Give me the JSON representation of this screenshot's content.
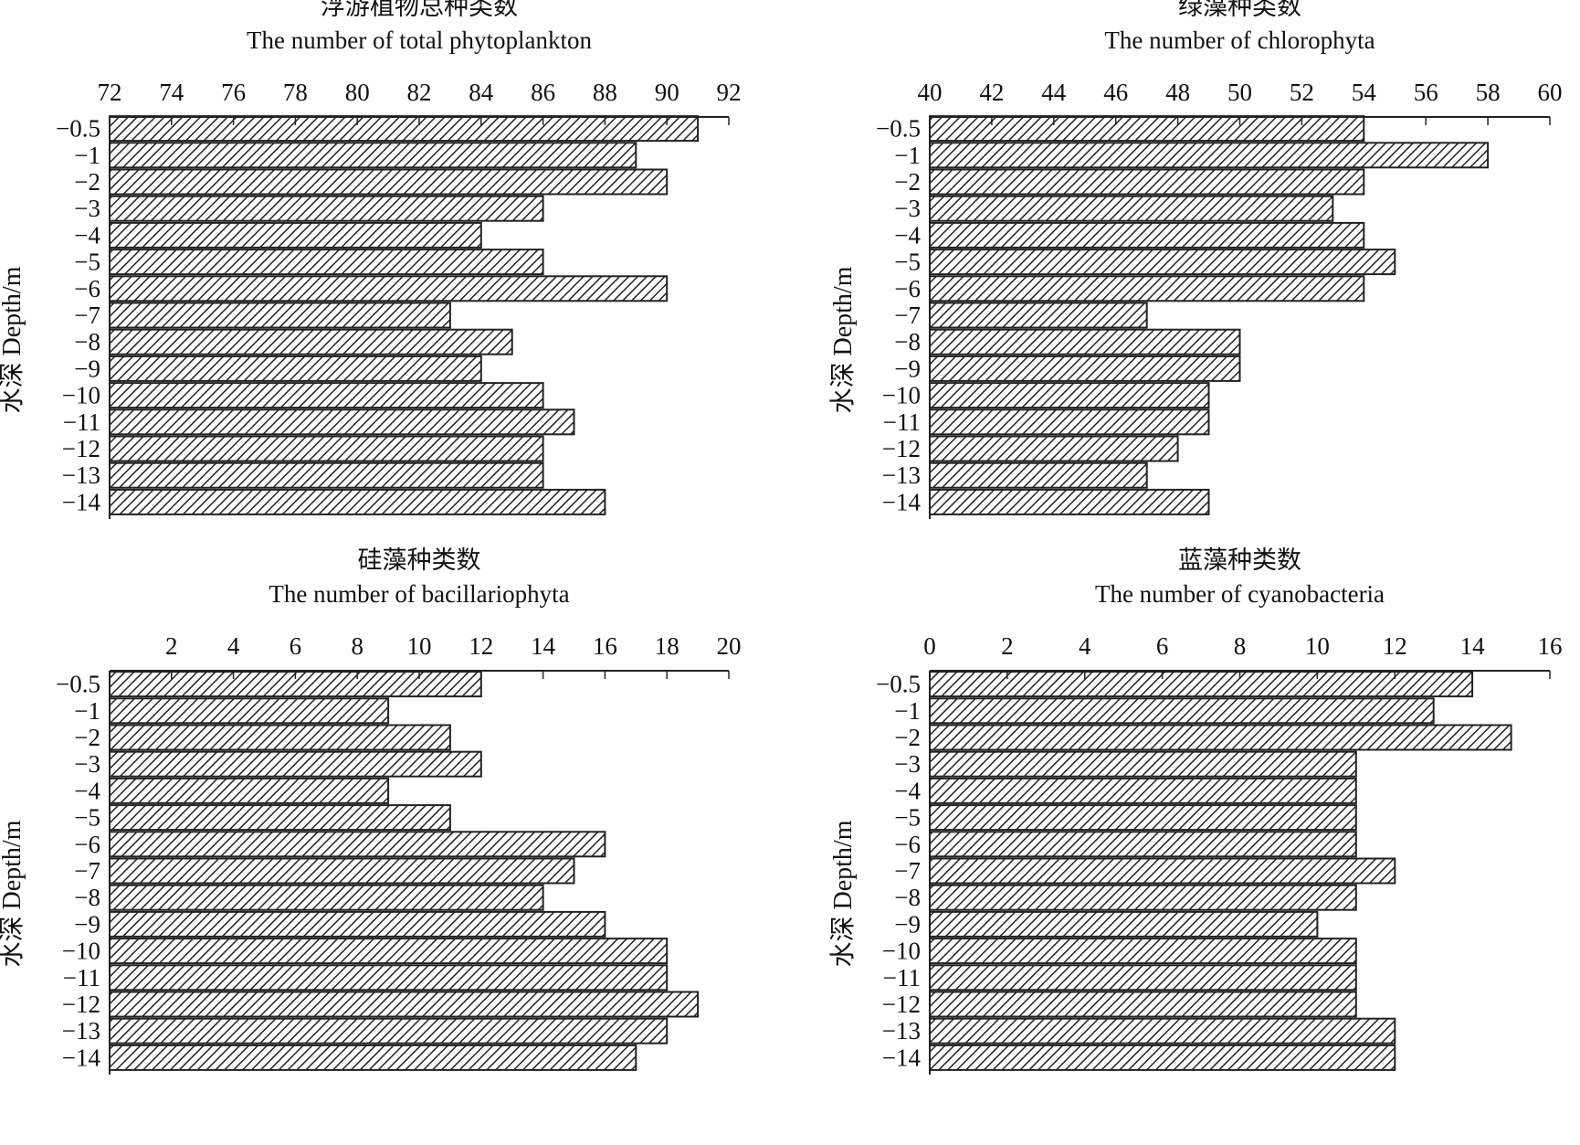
{
  "colors": {
    "axis": "#222222",
    "bar_stroke": "#222222",
    "hatch_line": "#222222",
    "background": "#ffffff"
  },
  "chart_data": [
    {
      "type": "bar",
      "orientation": "horizontal",
      "title_cn": "浮游植物总种类数",
      "title_en": "The number of total phytoplankton",
      "ylabel": "水深 Depth/m",
      "categories": [
        "−0.5",
        "−1",
        "−2",
        "−3",
        "−4",
        "−5",
        "−6",
        "−7",
        "−8",
        "−9",
        "−10",
        "−11",
        "−12",
        "−13",
        "−14"
      ],
      "values": [
        91,
        89,
        90,
        86,
        84,
        86,
        90,
        83,
        85,
        84,
        86,
        87,
        86,
        86,
        88
      ],
      "xlim": [
        72,
        92
      ],
      "xticks": [
        72,
        74,
        76,
        78,
        80,
        82,
        84,
        86,
        88,
        90,
        92
      ],
      "x_axis_position": "top",
      "bar_fill": "diagonal-hatch",
      "grid": false
    },
    {
      "type": "bar",
      "orientation": "horizontal",
      "title_cn": "绿藻种类数",
      "title_en": "The number of chlorophyta",
      "ylabel": "水深 Depth/m",
      "categories": [
        "−0.5",
        "−1",
        "−2",
        "−3",
        "−4",
        "−5",
        "−6",
        "−7",
        "−8",
        "−9",
        "−10",
        "−11",
        "−12",
        "−13",
        "−14"
      ],
      "values": [
        54,
        58,
        54,
        53,
        54,
        55,
        54,
        47,
        50,
        50,
        49,
        49,
        48,
        47,
        49
      ],
      "xlim": [
        40,
        60
      ],
      "xticks": [
        40,
        42,
        44,
        46,
        48,
        50,
        52,
        54,
        56,
        58,
        60
      ],
      "x_axis_position": "top",
      "bar_fill": "diagonal-hatch",
      "grid": false
    },
    {
      "type": "bar",
      "orientation": "horizontal",
      "title_cn": "硅藻种类数",
      "title_en": "The number of bacillariophyta",
      "ylabel": "水深 Depth/m",
      "categories": [
        "−0.5",
        "−1",
        "−2",
        "−3",
        "−4",
        "−5",
        "−6",
        "−7",
        "−8",
        "−9",
        "−10",
        "−11",
        "−12",
        "−13",
        "−14"
      ],
      "values": [
        12,
        9,
        11,
        12,
        9,
        11,
        16,
        15,
        14,
        16,
        18,
        18,
        19,
        18,
        17
      ],
      "xlim": [
        0,
        20
      ],
      "xticks": [
        2,
        4,
        6,
        8,
        10,
        12,
        14,
        16,
        18,
        20
      ],
      "x_axis_position": "top",
      "bar_fill": "diagonal-hatch",
      "grid": false
    },
    {
      "type": "bar",
      "orientation": "horizontal",
      "title_cn": "蓝藻种类数",
      "title_en": "The number of cyanobacteria",
      "ylabel": "水深 Depth/m",
      "categories": [
        "−0.5",
        "−1",
        "−2",
        "−3",
        "−4",
        "−5",
        "−6",
        "−7",
        "−8",
        "−9",
        "−10",
        "−11",
        "−12",
        "−13",
        "−14"
      ],
      "values": [
        14,
        13,
        15,
        11,
        11,
        11,
        11,
        12,
        11,
        10,
        11,
        11,
        11,
        12,
        12
      ],
      "xlim": [
        0,
        16
      ],
      "xticks": [
        0,
        2,
        4,
        6,
        8,
        10,
        12,
        14,
        16
      ],
      "x_axis_position": "top",
      "bar_fill": "diagonal-hatch",
      "grid": false
    }
  ]
}
